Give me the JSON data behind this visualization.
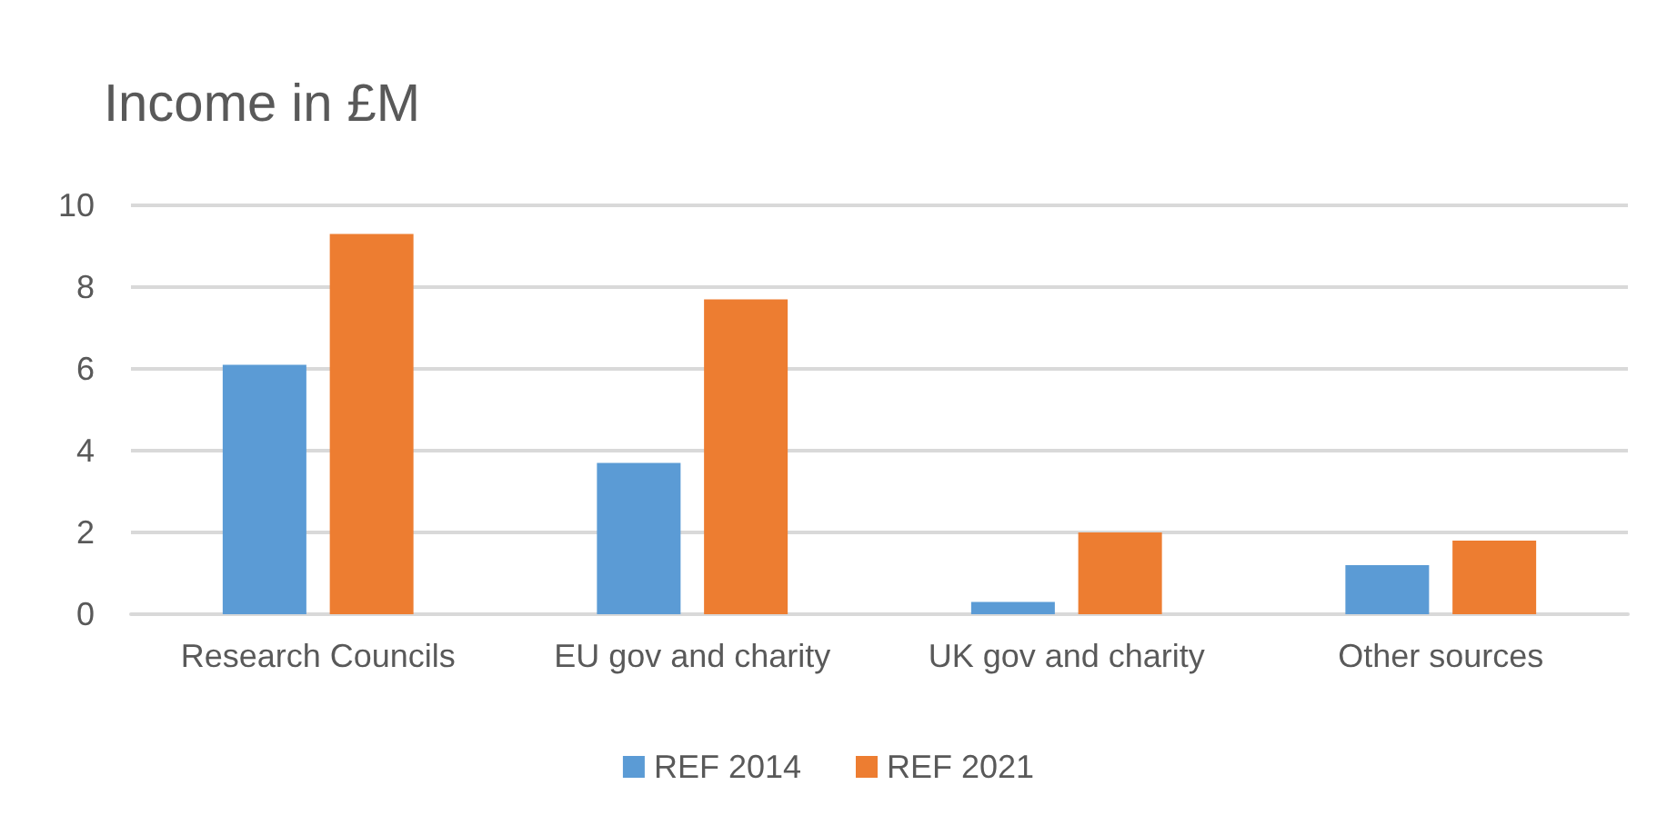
{
  "chart_data": {
    "type": "bar",
    "title": "Income in £M",
    "categories": [
      "Research Councils",
      "EU gov and charity",
      "UK gov and charity",
      "Other sources"
    ],
    "series": [
      {
        "name": "REF 2014",
        "color": "#5b9bd5",
        "values": [
          6.1,
          3.7,
          0.3,
          1.2
        ]
      },
      {
        "name": "REF 2021",
        "color": "#ed7d31",
        "values": [
          9.3,
          7.7,
          2.0,
          1.8
        ]
      }
    ],
    "ylim": [
      0,
      10
    ],
    "yticks": [
      0,
      2,
      4,
      6,
      8,
      10
    ],
    "grid": "y",
    "legend": "bottom"
  }
}
